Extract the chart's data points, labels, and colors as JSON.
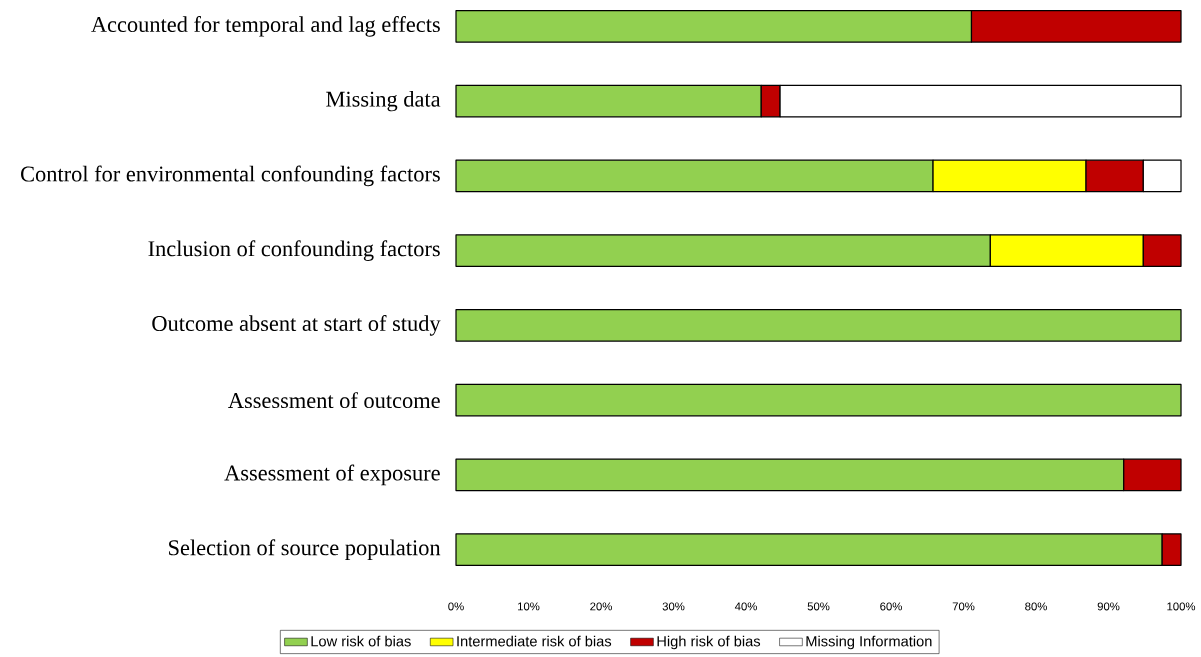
{
  "chart_data": {
    "type": "bar",
    "orientation": "horizontal",
    "stacked": true,
    "categories": [
      "Accounted for temporal and lag effects",
      "Missing data",
      "Control for environmental confounding factors",
      "Inclusion of confounding factors",
      "Outcome absent at start of study",
      "Assessment of outcome",
      "Assessment of exposure",
      "Selection of source population"
    ],
    "series": [
      {
        "name": "Low risk of bias",
        "color": "#92d050",
        "values": [
          71.1,
          42.1,
          65.8,
          73.7,
          100,
          100,
          92.1,
          97.4
        ]
      },
      {
        "name": "Intermediate risk of bias",
        "color": "#ffff00",
        "values": [
          null,
          null,
          21.1,
          21.1,
          null,
          null,
          null,
          null
        ]
      },
      {
        "name": "High risk of bias",
        "color": "#c00000",
        "values": [
          28.9,
          2.6,
          7.9,
          5.2,
          null,
          null,
          7.9,
          2.6
        ]
      },
      {
        "name": "Missing Information",
        "color": "#ffffff",
        "values": [
          null,
          55.3,
          5.2,
          null,
          null,
          null,
          null,
          null
        ]
      }
    ],
    "xlim": [
      0,
      100
    ],
    "xticks": [
      {
        "value": 0,
        "label": "0%"
      },
      {
        "value": 10,
        "label": "10%"
      },
      {
        "value": 20,
        "label": "20%"
      },
      {
        "value": 30,
        "label": "30%"
      },
      {
        "value": 40,
        "label": "40%"
      },
      {
        "value": 50,
        "label": "50%"
      },
      {
        "value": 60,
        "label": "60%"
      },
      {
        "value": 70,
        "label": "70%"
      },
      {
        "value": 80,
        "label": "80%"
      },
      {
        "value": 90,
        "label": "90%"
      },
      {
        "value": 100,
        "label": "100%"
      }
    ],
    "grid": false,
    "legend": "bottom"
  }
}
